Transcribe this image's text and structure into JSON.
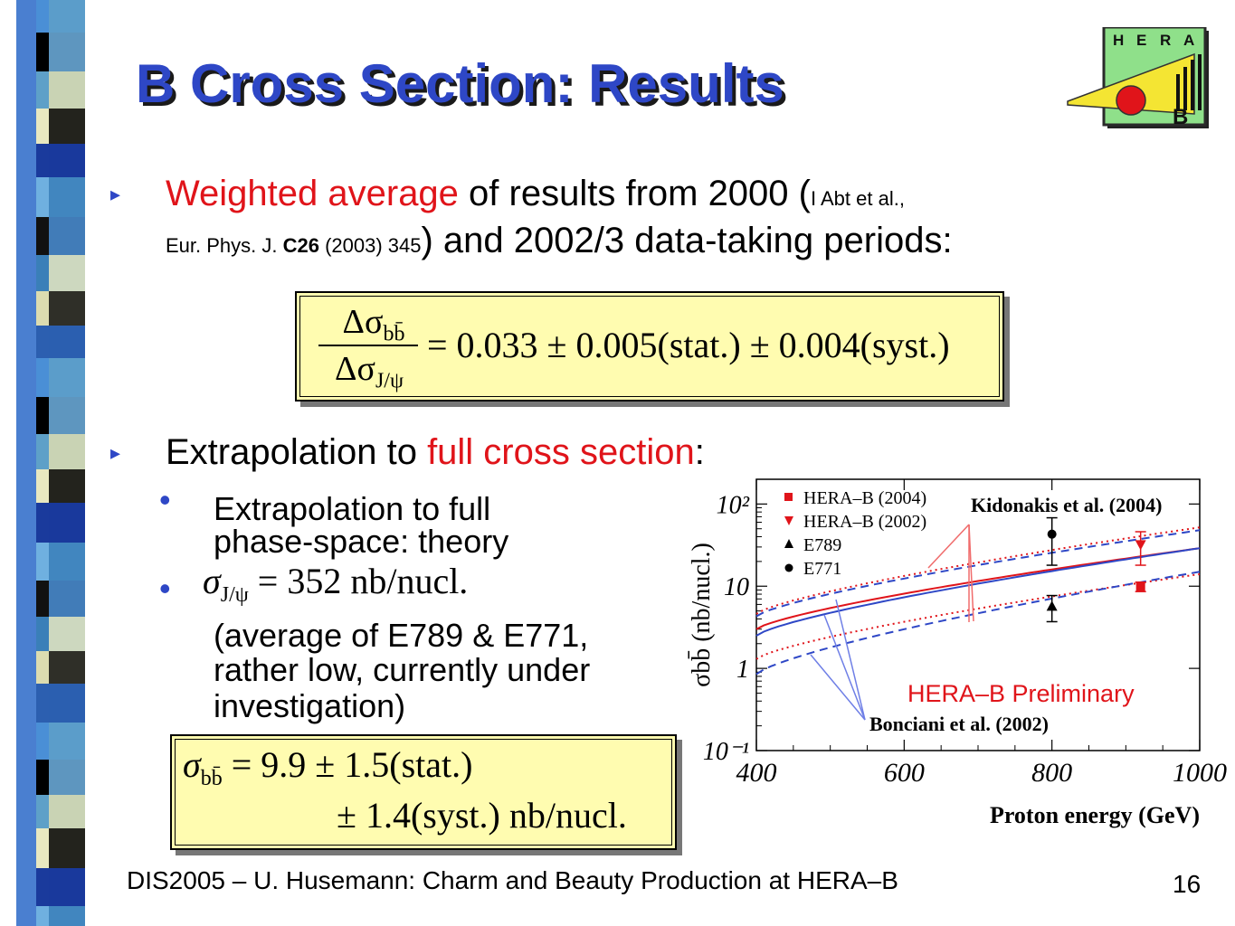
{
  "title": "B Cross Section: Results",
  "logo": {
    "letters": [
      "H",
      "E",
      "R",
      "A"
    ],
    "sub": "B"
  },
  "bullet1": {
    "red_part": "Weighted average",
    "text_a": " of results from 2000 (",
    "ref_a": "I Abt et al.,",
    "ref_b": "Eur. Phys. J. ",
    "ref_vol": "C26",
    "ref_c": " (2003) 345",
    "text_b": ") and 2002/3 data-taking periods:"
  },
  "eq1": {
    "num": "Δσ",
    "num_sub": "bb̄",
    "den": "Δσ",
    "den_sub": "J/ψ",
    "rhs": "= 0.033 ± 0.005(stat.) ± 0.004(syst.)"
  },
  "bullet2": {
    "text_a": "Extrapolation to ",
    "red_part": "full cross section",
    "text_b": ":"
  },
  "sub1": {
    "line1": "Extrapolation to full",
    "line2": "phase-space: theory"
  },
  "sub2": {
    "formula_sym": "σ",
    "formula_sub": "J/ψ",
    "formula_rhs": " = 352 nb/nucl.",
    "line1": "(average of E789 & E771,",
    "line2": "rather low, currently under",
    "line3": "investigation)"
  },
  "eq2": {
    "sym": "σ",
    "sub": "bb̄",
    "line1": " = 9.9 ± 1.5(stat.)",
    "line2": "± 1.4(syst.) nb/nucl."
  },
  "chart_data": {
    "type": "scatter",
    "xlabel": "Proton energy (GeV)",
    "ylabel": "σbb̄ (nb/nucl.)",
    "xlim": [
      400,
      1000
    ],
    "ylim": [
      0.1,
      200
    ],
    "log_y": true,
    "x_ticks": [
      "400",
      "600",
      "800",
      "1000"
    ],
    "y_ticks": [
      "10⁻¹",
      "1",
      "10",
      "10²"
    ],
    "legend": [
      "HERA–B (2004)",
      "HERA–B (2002)",
      "E789",
      "E771"
    ],
    "annotations": [
      "Kidonakis et al. (2004)",
      "Bonciani et al. (2002)",
      "HERA–B Preliminary"
    ],
    "points": [
      {
        "series": "HERA–B (2004)",
        "x": 920,
        "y": 9.9,
        "err": 1.3
      },
      {
        "series": "HERA–B (2002)",
        "x": 920,
        "y": 32,
        "err": 14
      },
      {
        "series": "E789",
        "x": 800,
        "y": 5.7,
        "err": 2.0
      },
      {
        "series": "E771",
        "x": 800,
        "y": 43,
        "err": 25
      }
    ],
    "curves": [
      {
        "name": "Kidonakis central",
        "color": "#e0141a",
        "style": "solid",
        "y_at_400": 3.0,
        "y_at_1000": 29
      },
      {
        "name": "Kidonakis upper",
        "color": "#e0141a",
        "style": "dotted",
        "y_at_400": 4.6,
        "y_at_1000": 52
      },
      {
        "name": "Kidonakis lower",
        "color": "#e0141a",
        "style": "dotted",
        "y_at_400": 1.3,
        "y_at_1000": 14
      },
      {
        "name": "Bonciani central",
        "color": "#2e47c6",
        "style": "solid",
        "y_at_400": 2.5,
        "y_at_1000": 29
      },
      {
        "name": "Bonciani upper",
        "color": "#2e47c6",
        "style": "dashed",
        "y_at_400": 4.3,
        "y_at_1000": 48
      },
      {
        "name": "Bonciani lower",
        "color": "#2e47c6",
        "style": "dashed",
        "y_at_400": 0.85,
        "y_at_1000": 15
      }
    ],
    "colors": {
      "red": "#e0141a",
      "blue": "#2e47c6"
    }
  },
  "footer": "DIS2005 – U. Husemann: Charm and Beauty Production at HERA–B",
  "page_number": "16"
}
